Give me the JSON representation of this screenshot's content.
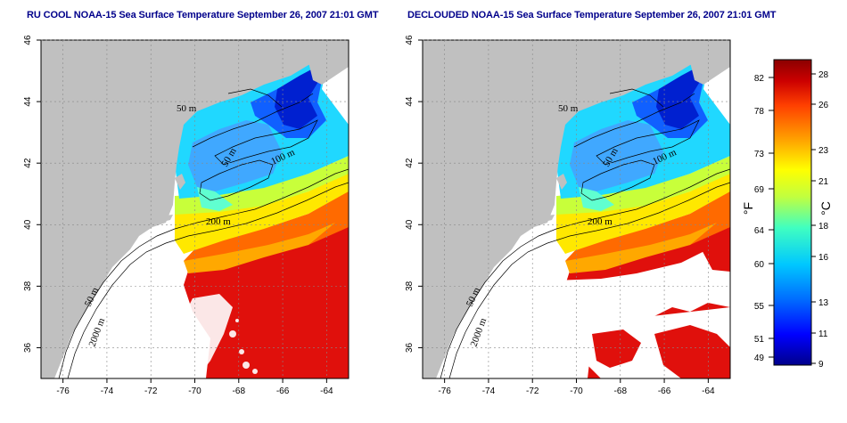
{
  "panels": [
    {
      "title": "RU COOL NOAA-15 Sea Surface Temperature September 26, 2007 21:01 GMT",
      "variant": "raw"
    },
    {
      "title": "DECLOUDED NOAA-15 Sea Surface Temperature September 26, 2007 21:01 GMT",
      "variant": "declouded"
    }
  ],
  "axes": {
    "x_ticks": [
      "-76",
      "-74",
      "-72",
      "-70",
      "-68",
      "-66",
      "-64"
    ],
    "y_ticks": [
      "46",
      "44",
      "42",
      "40",
      "38",
      "36"
    ],
    "x_range": [
      -77,
      -63
    ],
    "y_range": [
      35,
      46
    ]
  },
  "contour_labels": [
    "50 m",
    "100 m",
    "200 m",
    "50 m",
    "2000 m",
    "50 m"
  ],
  "colorbar": {
    "fahrenheit_ticks": [
      "82",
      "78",
      "73",
      "69",
      "64",
      "60",
      "55",
      "51",
      "49"
    ],
    "celsius_ticks": [
      "28",
      "26",
      "23",
      "21",
      "18",
      "16",
      "13",
      "11",
      "9"
    ],
    "fahrenheit_label": "°F",
    "celsius_label": "°C",
    "colors": [
      "#00008b",
      "#0000ff",
      "#0070ff",
      "#00c8ff",
      "#40ffc0",
      "#c0ff40",
      "#ffff00",
      "#ffa000",
      "#ff4000",
      "#cc0000",
      "#8b0000"
    ]
  },
  "legend_colors": {
    "land": "#c0c0c0",
    "cloud": "#ffffff",
    "contour": "#000000",
    "grid": "#aaaaaa"
  }
}
